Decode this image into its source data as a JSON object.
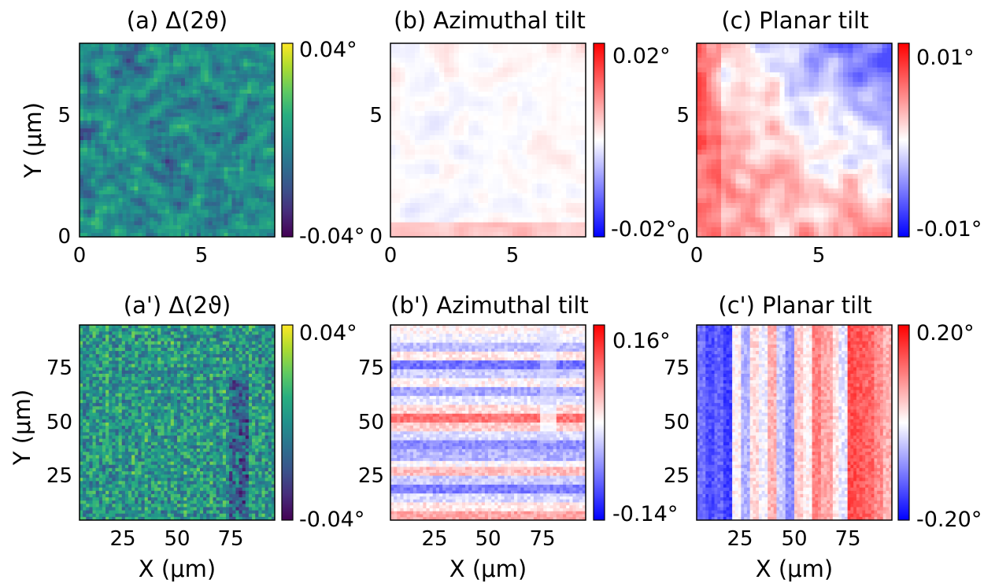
{
  "figure": {
    "panels": [
      {
        "id": "a",
        "title": "(a) Δ(2ϑ)",
        "ylabel": "Y (μm)",
        "xlabel": "",
        "xticks": [
          "0",
          "5"
        ],
        "yticks": [
          "0",
          "5"
        ],
        "cbar_max": "0.04°",
        "cbar_min": "-0.04°"
      },
      {
        "id": "b",
        "title": "(b) Azimuthal tilt",
        "ylabel": "",
        "xlabel": "",
        "xticks": [
          "0",
          "5"
        ],
        "yticks": [
          "0",
          "5"
        ],
        "cbar_max": "0.02°",
        "cbar_min": "-0.02°"
      },
      {
        "id": "c",
        "title": "(c) Planar tilt",
        "ylabel": "",
        "xlabel": "",
        "xticks": [
          "0",
          "5"
        ],
        "yticks": [
          "0",
          "5"
        ],
        "cbar_max": "0.01°",
        "cbar_min": "-0.01°"
      },
      {
        "id": "a2",
        "title": "(a') Δ(2ϑ)",
        "ylabel": "Y (μm)",
        "xlabel": "X (μm)",
        "xticks": [
          "25",
          "50",
          "75"
        ],
        "yticks": [
          "25",
          "50",
          "75"
        ],
        "cbar_max": "0.04°",
        "cbar_min": "-0.04°"
      },
      {
        "id": "b2",
        "title": "(b') Azimuthal tilt",
        "ylabel": "",
        "xlabel": "X (μm)",
        "xticks": [
          "25",
          "50",
          "75"
        ],
        "yticks": [
          "25",
          "50",
          "75"
        ],
        "cbar_max": "0.16°",
        "cbar_min": "-0.14°"
      },
      {
        "id": "c2",
        "title": "(c') Planar tilt",
        "ylabel": "",
        "xlabel": "X (μm)",
        "xticks": [
          "25",
          "50",
          "75"
        ],
        "yticks": [
          "25",
          "50",
          "75"
        ],
        "cbar_max": "0.20°",
        "cbar_min": "-0.20°"
      }
    ]
  },
  "chart_data": [
    {
      "type": "heatmap",
      "title": "(a) Δ(2ϑ)",
      "ylabel": "Y (μm)",
      "xlim": [
        0,
        8
      ],
      "ylim": [
        0,
        8
      ],
      "xticks": [
        0,
        5
      ],
      "yticks": [
        0,
        5
      ],
      "colormap": "viridis",
      "clim": [
        -0.04,
        0.04
      ],
      "unit": "°",
      "pattern": "speckle"
    },
    {
      "type": "heatmap",
      "title": "(b) Azimuthal tilt",
      "xlim": [
        0,
        8
      ],
      "ylim": [
        0,
        8
      ],
      "xticks": [
        0,
        5
      ],
      "yticks": [
        0,
        5
      ],
      "colormap": "bwr",
      "clim": [
        -0.02,
        0.02
      ],
      "unit": "°",
      "pattern": "faint-blobs"
    },
    {
      "type": "heatmap",
      "title": "(c) Planar tilt",
      "xlim": [
        0,
        8
      ],
      "ylim": [
        0,
        8
      ],
      "xticks": [
        0,
        5
      ],
      "yticks": [
        0,
        5
      ],
      "colormap": "bwr",
      "clim": [
        -0.01,
        0.01
      ],
      "unit": "°",
      "pattern": "blue-top-red-left"
    },
    {
      "type": "heatmap",
      "title": "(a') Δ(2ϑ)",
      "xlabel": "X (μm)",
      "ylabel": "Y (μm)",
      "xlim": [
        5,
        95
      ],
      "ylim": [
        5,
        95
      ],
      "xticks": [
        25,
        50,
        75
      ],
      "yticks": [
        25,
        50,
        75
      ],
      "colormap": "viridis",
      "clim": [
        -0.04,
        0.04
      ],
      "unit": "°",
      "pattern": "fine-grid-with-dark-feature-near-x80"
    },
    {
      "type": "heatmap",
      "title": "(b') Azimuthal tilt",
      "xlabel": "X (μm)",
      "xlim": [
        5,
        95
      ],
      "ylim": [
        5,
        95
      ],
      "xticks": [
        25,
        50,
        75
      ],
      "yticks": [
        25,
        50,
        75
      ],
      "colormap": "bwr",
      "clim": [
        -0.14,
        0.16
      ],
      "unit": "°",
      "pattern": "horizontal-stripes"
    },
    {
      "type": "heatmap",
      "title": "(c') Planar tilt",
      "xlabel": "X (μm)",
      "xlim": [
        5,
        95
      ],
      "ylim": [
        5,
        95
      ],
      "xticks": [
        25,
        50,
        75
      ],
      "yticks": [
        25,
        50,
        75
      ],
      "colormap": "bwr",
      "clim": [
        -0.2,
        0.2
      ],
      "unit": "°",
      "pattern": "vertical-stripes-blue-to-red"
    }
  ]
}
